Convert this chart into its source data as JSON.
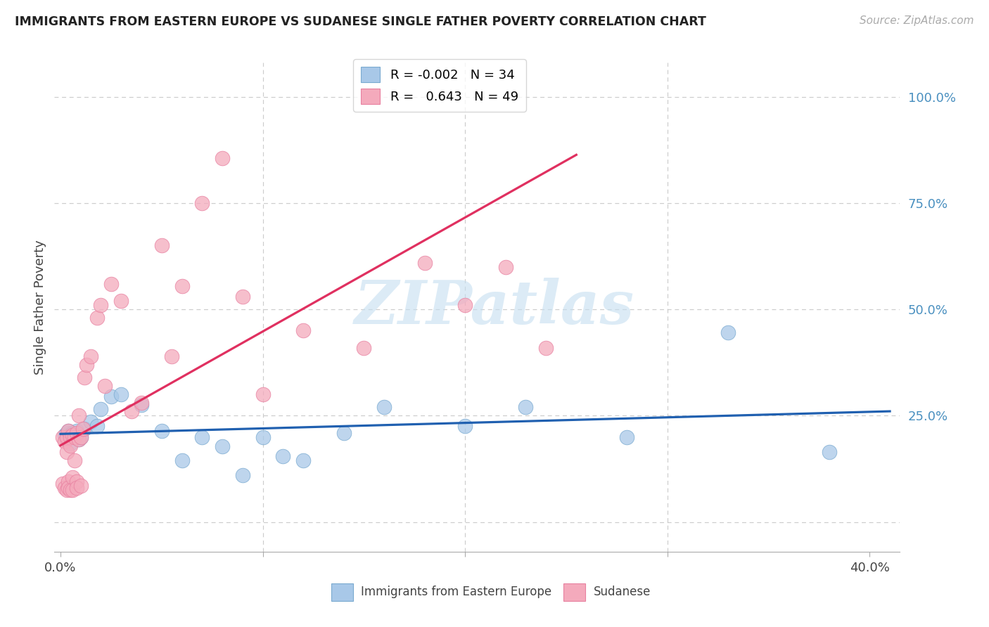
{
  "title": "IMMIGRANTS FROM EASTERN EUROPE VS SUDANESE SINGLE FATHER POVERTY CORRELATION CHART",
  "source": "Source: ZipAtlas.com",
  "xlabel_blue": "Immigrants from Eastern Europe",
  "xlabel_pink": "Sudanese",
  "ylabel": "Single Father Poverty",
  "xlim": [
    -0.003,
    0.415
  ],
  "ylim": [
    -0.07,
    1.08
  ],
  "blue_R": -0.002,
  "blue_N": 34,
  "pink_R": 0.643,
  "pink_N": 49,
  "blue_color": "#a8c8e8",
  "pink_color": "#f4aabc",
  "blue_edge_color": "#7aaad0",
  "pink_edge_color": "#e880a0",
  "blue_line_color": "#2060b0",
  "pink_line_color": "#e03060",
  "right_tick_color": "#4a90c0",
  "grid_color": "#cccccc",
  "watermark_color": "#c5dff0",
  "blue_scatter_x": [
    0.002,
    0.003,
    0.003,
    0.004,
    0.004,
    0.005,
    0.005,
    0.006,
    0.007,
    0.008,
    0.009,
    0.01,
    0.012,
    0.015,
    0.018,
    0.02,
    0.025,
    0.03,
    0.04,
    0.05,
    0.06,
    0.07,
    0.08,
    0.09,
    0.1,
    0.11,
    0.12,
    0.14,
    0.16,
    0.2,
    0.23,
    0.28,
    0.33,
    0.38
  ],
  "blue_scatter_y": [
    0.205,
    0.21,
    0.195,
    0.215,
    0.2,
    0.205,
    0.185,
    0.21,
    0.2,
    0.215,
    0.195,
    0.2,
    0.22,
    0.235,
    0.225,
    0.265,
    0.295,
    0.3,
    0.275,
    0.215,
    0.145,
    0.2,
    0.178,
    0.11,
    0.2,
    0.155,
    0.145,
    0.21,
    0.27,
    0.225,
    0.27,
    0.2,
    0.445,
    0.165
  ],
  "pink_scatter_x": [
    0.001,
    0.001,
    0.002,
    0.002,
    0.003,
    0.003,
    0.003,
    0.004,
    0.004,
    0.004,
    0.005,
    0.005,
    0.005,
    0.006,
    0.006,
    0.006,
    0.007,
    0.007,
    0.008,
    0.008,
    0.008,
    0.009,
    0.009,
    0.01,
    0.01,
    0.011,
    0.012,
    0.013,
    0.015,
    0.018,
    0.02,
    0.022,
    0.025,
    0.03,
    0.035,
    0.04,
    0.05,
    0.055,
    0.06,
    0.07,
    0.08,
    0.09,
    0.1,
    0.12,
    0.15,
    0.18,
    0.2,
    0.22,
    0.24
  ],
  "pink_scatter_y": [
    0.2,
    0.09,
    0.19,
    0.08,
    0.2,
    0.165,
    0.075,
    0.215,
    0.095,
    0.08,
    0.2,
    0.18,
    0.075,
    0.205,
    0.105,
    0.075,
    0.2,
    0.145,
    0.21,
    0.095,
    0.08,
    0.195,
    0.25,
    0.2,
    0.085,
    0.22,
    0.34,
    0.37,
    0.39,
    0.48,
    0.51,
    0.32,
    0.56,
    0.52,
    0.26,
    0.28,
    0.65,
    0.39,
    0.555,
    0.75,
    0.855,
    0.53,
    0.3,
    0.45,
    0.41,
    0.61,
    0.51,
    0.6,
    0.41
  ]
}
